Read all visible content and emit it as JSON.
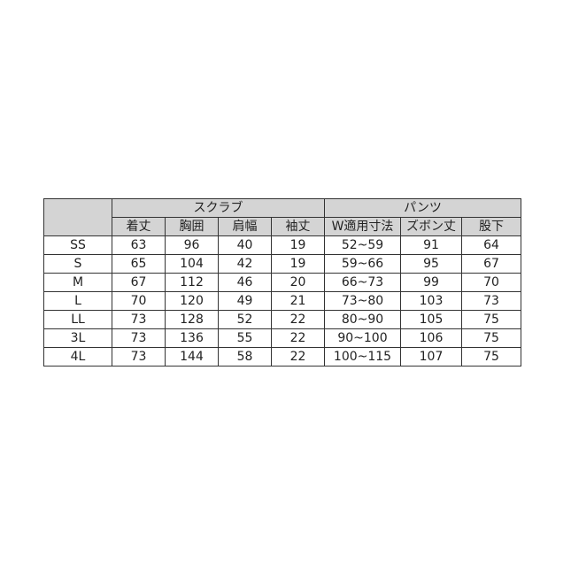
{
  "groups": [
    {
      "label": "スクラブ",
      "span": 4
    },
    {
      "label": "パンツ",
      "span": 3
    }
  ],
  "columns": [
    "着丈",
    "胸囲",
    "肩幅",
    "袖丈",
    "W適用寸法",
    "ズボン丈",
    "股下"
  ],
  "rows": [
    {
      "size": "SS",
      "values": [
        "63",
        "96",
        "40",
        "19",
        "52~59",
        "91",
        "64"
      ]
    },
    {
      "size": "S",
      "values": [
        "65",
        "104",
        "42",
        "19",
        "59~66",
        "95",
        "67"
      ]
    },
    {
      "size": "M",
      "values": [
        "67",
        "112",
        "46",
        "20",
        "66~73",
        "99",
        "70"
      ]
    },
    {
      "size": "L",
      "values": [
        "70",
        "120",
        "49",
        "21",
        "73~80",
        "103",
        "73"
      ]
    },
    {
      "size": "LL",
      "values": [
        "73",
        "128",
        "52",
        "22",
        "80~90",
        "105",
        "75"
      ]
    },
    {
      "size": "3L",
      "values": [
        "73",
        "136",
        "55",
        "22",
        "90~100",
        "106",
        "75"
      ]
    },
    {
      "size": "4L",
      "values": [
        "73",
        "144",
        "58",
        "22",
        "100~115",
        "107",
        "75"
      ]
    }
  ],
  "colors": {
    "header_bg": "#d4d4d4",
    "border": "#333333"
  }
}
